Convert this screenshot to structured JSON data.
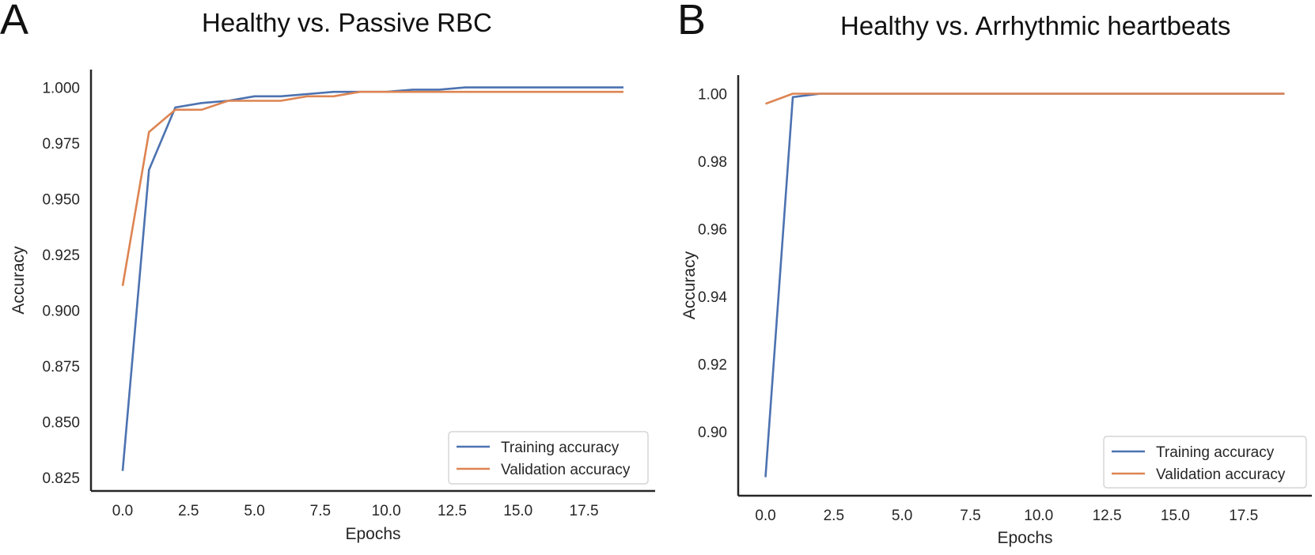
{
  "chart_data": [
    {
      "type": "line",
      "panel_label": "A",
      "title": "Healthy vs. Passive RBC",
      "xlabel": "Epochs",
      "ylabel": "Accuracy",
      "xlim": [
        -1.2,
        20.2
      ],
      "ylim": [
        0.819,
        1.008
      ],
      "xticks": [
        0,
        2.5,
        5,
        7.5,
        10,
        12.5,
        15,
        17.5
      ],
      "xtick_labels": [
        "0.0",
        "2.5",
        "5.0",
        "7.5",
        "10.0",
        "12.5",
        "15.0",
        "17.5"
      ],
      "yticks": [
        0.825,
        0.85,
        0.875,
        0.9,
        0.925,
        0.95,
        0.975,
        1.0
      ],
      "ytick_labels": [
        "0.825",
        "0.850",
        "0.875",
        "0.900",
        "0.925",
        "0.950",
        "0.975",
        "1.000"
      ],
      "grid": false,
      "legend_position": "lower-right",
      "x": [
        0,
        1,
        2,
        3,
        4,
        5,
        6,
        7,
        8,
        9,
        10,
        11,
        12,
        13,
        14,
        15,
        16,
        17,
        18,
        19
      ],
      "series": [
        {
          "name": "Training accuracy",
          "color": "#4c72b0",
          "values": [
            0.828,
            0.963,
            0.991,
            0.993,
            0.994,
            0.996,
            0.996,
            0.997,
            0.998,
            0.998,
            0.998,
            0.999,
            0.999,
            1.0,
            1.0,
            1.0,
            1.0,
            1.0,
            1.0,
            1.0
          ]
        },
        {
          "name": "Validation accuracy",
          "color": "#dd8452",
          "values": [
            0.911,
            0.98,
            0.99,
            0.99,
            0.994,
            0.994,
            0.994,
            0.996,
            0.996,
            0.998,
            0.998,
            0.998,
            0.998,
            0.998,
            0.998,
            0.998,
            0.998,
            0.998,
            0.998,
            0.998
          ]
        }
      ]
    },
    {
      "type": "line",
      "panel_label": "B",
      "title": "Healthy vs. Arrhythmic heartbeats",
      "xlabel": "Epochs",
      "ylabel": "Accuracy",
      "xlim": [
        -1.0,
        20.0
      ],
      "ylim": [
        0.881,
        1.0055
      ],
      "xticks": [
        0,
        2.5,
        5,
        7.5,
        10,
        12.5,
        15,
        17.5
      ],
      "xtick_labels": [
        "0.0",
        "2.5",
        "5.0",
        "7.5",
        "10.0",
        "12.5",
        "15.0",
        "17.5"
      ],
      "yticks": [
        0.9,
        0.92,
        0.94,
        0.96,
        0.98,
        1.0
      ],
      "ytick_labels": [
        "0.90",
        "0.92",
        "0.94",
        "0.96",
        "0.98",
        "1.00"
      ],
      "grid": false,
      "legend_position": "lower-right",
      "x": [
        0,
        1,
        2,
        3,
        4,
        5,
        6,
        7,
        8,
        9,
        10,
        11,
        12,
        13,
        14,
        15,
        16,
        17,
        18,
        19
      ],
      "series": [
        {
          "name": "Training accuracy",
          "color": "#4c72b0",
          "values": [
            0.8865,
            0.999,
            1.0,
            1.0,
            1.0,
            1.0,
            1.0,
            1.0,
            1.0,
            1.0,
            1.0,
            1.0,
            1.0,
            1.0,
            1.0,
            1.0,
            1.0,
            1.0,
            1.0,
            1.0
          ]
        },
        {
          "name": "Validation accuracy",
          "color": "#dd8452",
          "values": [
            0.997,
            1.0,
            1.0,
            1.0,
            1.0,
            1.0,
            1.0,
            1.0,
            1.0,
            1.0,
            1.0,
            1.0,
            1.0,
            1.0,
            1.0,
            1.0,
            1.0,
            1.0,
            1.0,
            1.0
          ]
        }
      ]
    }
  ]
}
